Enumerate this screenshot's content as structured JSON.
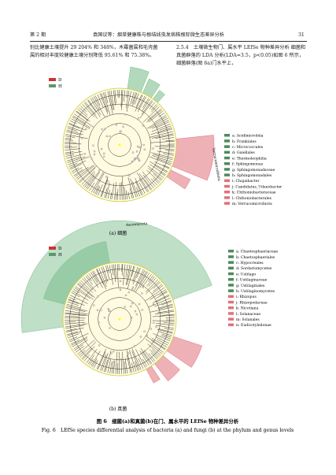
{
  "header": {
    "issue": "第 2 期",
    "running_title": "袁国议等：烟草健康株与根结线虫发病株根际微生态差异分析",
    "page": "31"
  },
  "body": {
    "left": "别比健康土壤提升 29 204% 和 348%，木霉菌属和毛壳菌属的相对丰度较健康土壤分别降低 95.61% 和 75.38%。",
    "right_heading": "2.5.4　土壤微生物门、属水平 LEfSe 物种差异分析",
    "right": "细菌和真菌群落的 LDA 分析(LDA=3.5，p<0.05)如图 6 所示，细菌群落(图 6a)门水平上，"
  },
  "figure_a": {
    "legend": [
      "D",
      "H"
    ],
    "clade_label": "Verrucomicrobiota",
    "entries": [
      "a: Acidimicrobiia",
      "b: Frankiales",
      "c: Micrococcales",
      "d: Gaiellales",
      "e: Thermoleophilia",
      "f: Sphingomonas",
      "g: Sphingomonadaceae",
      "h: Sphingomonadales",
      "i: Chujaibacter",
      "j: Candidatus_Udaeobacter",
      "k: Chthoniobacteraceae",
      "l: Chthoniobacterales",
      "m: Verrucomicrobiota"
    ],
    "caption": "(a) 细菌"
  },
  "figure_b": {
    "legend": [
      "D",
      "H"
    ],
    "clade_label": "Ascomycota",
    "entries": [
      "a: Chaetosphaeriaceae",
      "b: Chaetosphaeriales",
      "c: Hypocreales",
      "d: Sordariomycetes",
      "e: Ustilago",
      "f: Ustilaginaceae",
      "g: Ustilaginales",
      "h: Ustilaginomycetes",
      "i: Rhizopus",
      "j: Rhizopodaceae",
      "k: Nicotiana",
      "l: Solanaceae",
      "m: Solanales",
      "n: Eudicotyledonae"
    ],
    "caption": "(b) 真菌"
  },
  "caption": {
    "zh": "图 6　细菌(a)和真菌(b)在门、属水平的 LEfSe 物种差异分析",
    "en": "Fig. 6　LEfSe species differential analysis of bacteria (a) and fungi (b) at the phylum and genus levels"
  }
}
